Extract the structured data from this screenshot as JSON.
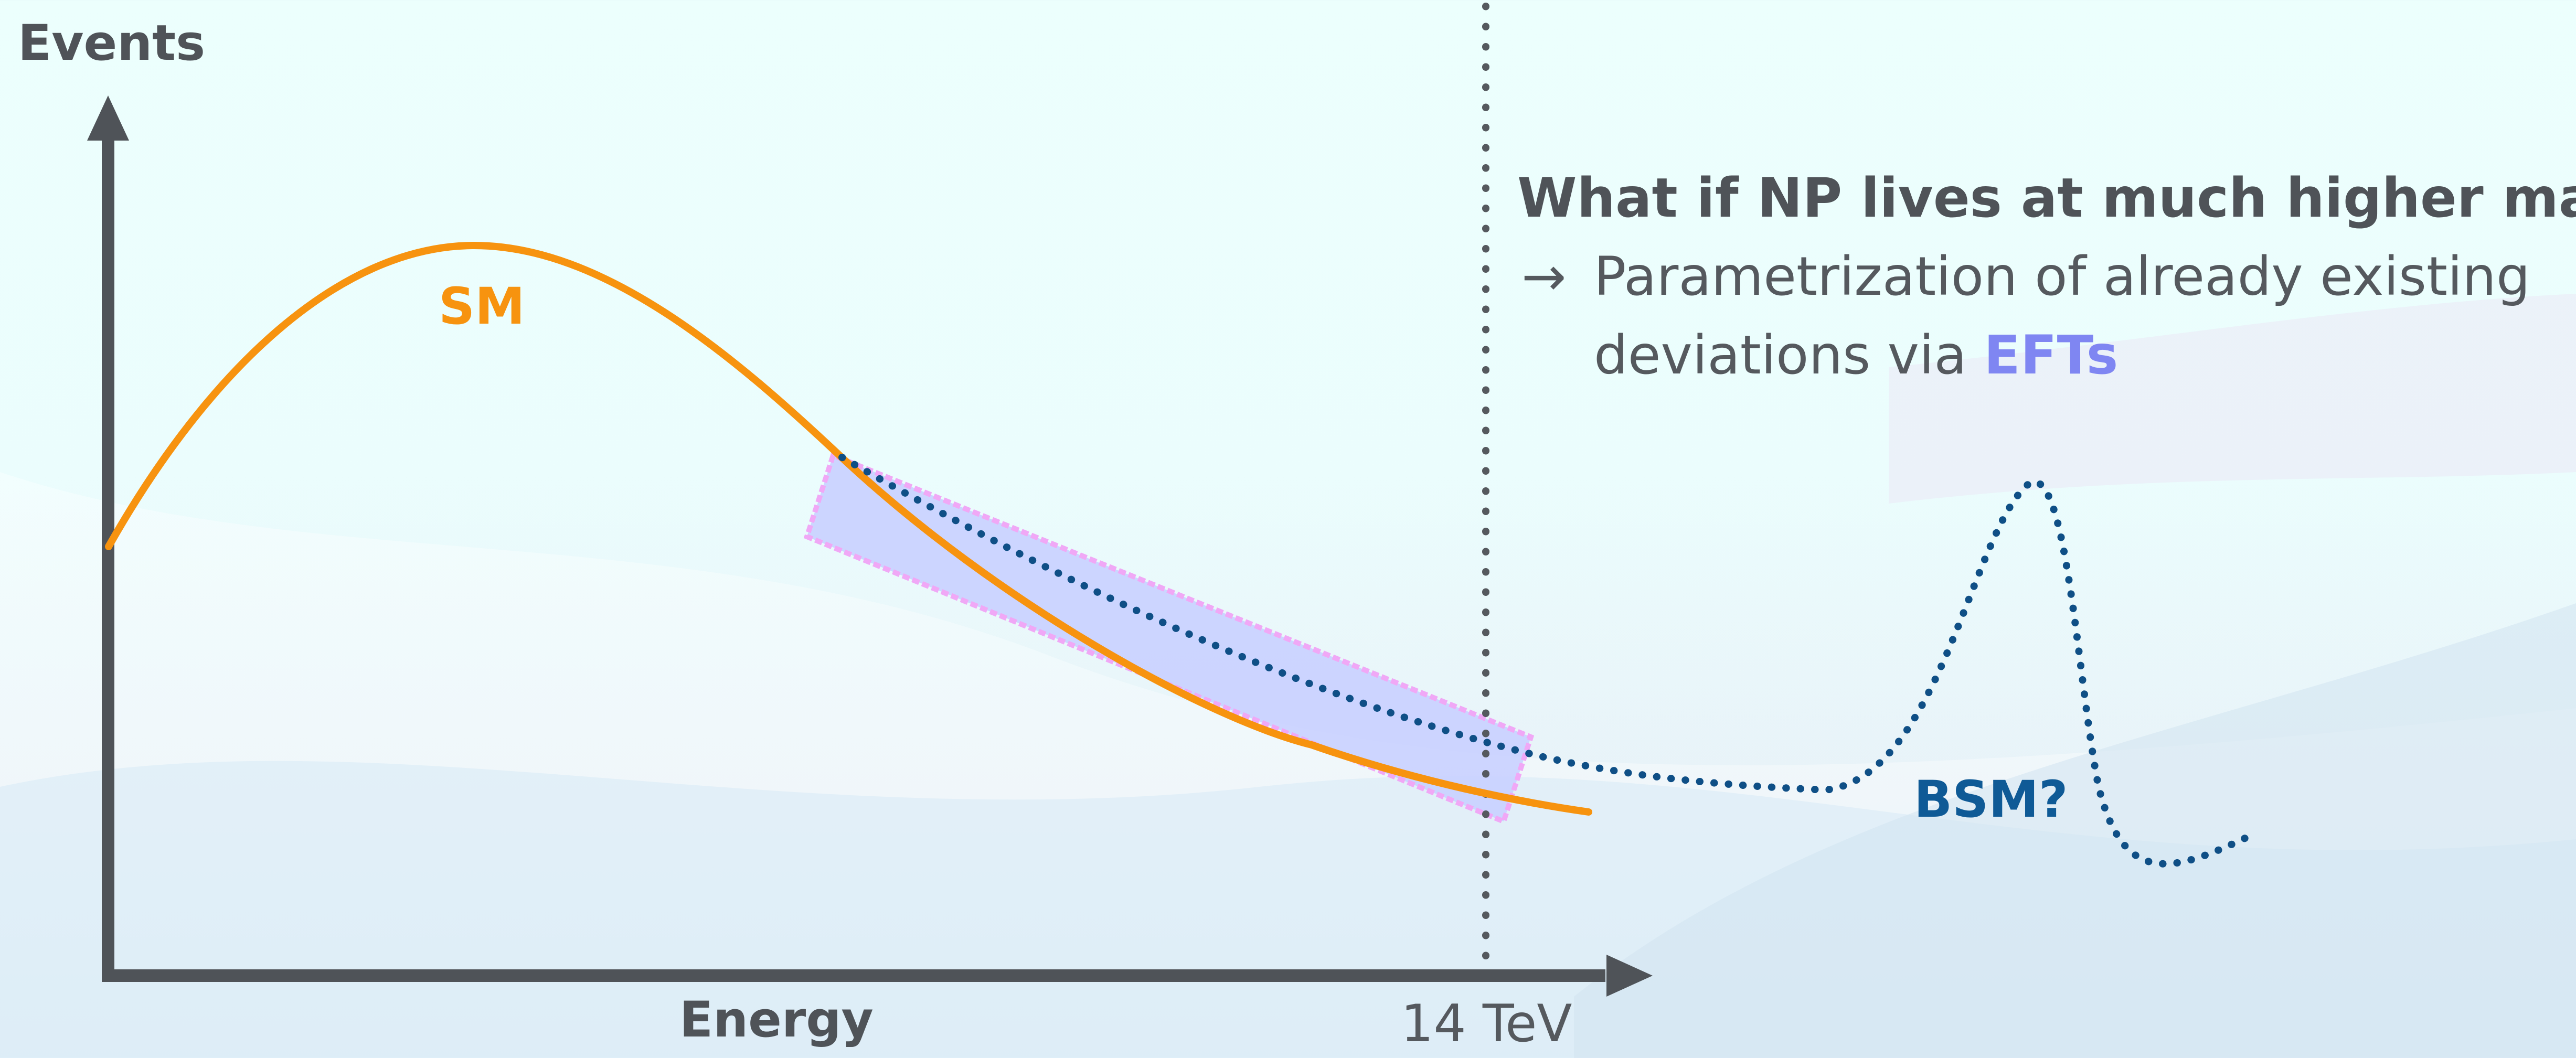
{
  "axes": {
    "y_label": "Events",
    "x_label": "Energy",
    "x_marker_label": "14 TeV"
  },
  "curves": {
    "sm_label": "SM",
    "bsm_label": "BSM?"
  },
  "annotation": {
    "question": "What if NP lives at much higher mass?",
    "arrow_glyph": "→",
    "line_1": "Parametrization of already existing",
    "line_2_prefix": "deviations via ",
    "line_2_highlight": "EFTs"
  },
  "colors": {
    "sm_curve": "#f7930f",
    "bsm_curve": "#0f4f86",
    "eft_band": "#c9d0ff",
    "eft_band_border": "#f0a8f6",
    "axis": "#4f5358",
    "efts_text": "#7f86f2"
  }
}
